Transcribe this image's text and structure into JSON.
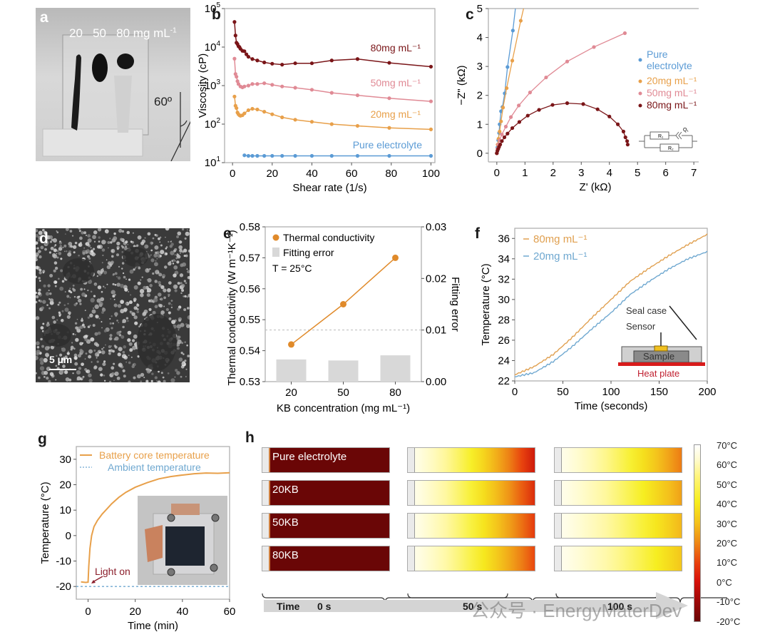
{
  "panels": {
    "a": {
      "label": "a",
      "concentrations": "20   50   80 mg mL",
      "unit_sup": "-1",
      "angle": "60º"
    },
    "d": {
      "label": "d",
      "scalebar": "5 µm"
    }
  },
  "chart_data": [
    {
      "id": "b",
      "label": "b",
      "type": "line",
      "title": "",
      "xlabel": "Shear rate (1/s)",
      "ylabel": "Viscosity (cP)",
      "xlim": [
        -4,
        102
      ],
      "ylim_log10": [
        1,
        5
      ],
      "yscale": "log",
      "xticks": [
        0,
        20,
        40,
        60,
        80,
        100
      ],
      "yticks": [
        "10^1",
        "10^2",
        "10^3",
        "10^4",
        "10^5"
      ],
      "series": [
        {
          "name": "80mg mL⁻¹",
          "color": "#7a1518",
          "x": [
            1,
            1.5,
            2,
            2.5,
            3,
            3.5,
            4,
            5,
            6,
            7,
            8,
            10,
            12.5,
            16,
            20,
            25,
            31.6,
            40,
            50,
            63,
            79,
            100
          ],
          "y": [
            45000,
            20000,
            13000,
            12000,
            10500,
            10000,
            9000,
            8000,
            7800,
            6500,
            5600,
            4900,
            4500,
            4000,
            3700,
            3500,
            3800,
            3800,
            4500,
            4900,
            3900,
            3100
          ]
        },
        {
          "name": "50mg mL⁻¹",
          "color": "#e08a95",
          "x": [
            1,
            1.5,
            2,
            2.5,
            3,
            4,
            5,
            6,
            8,
            10,
            12.5,
            16,
            20,
            25,
            31.6,
            40,
            50,
            63,
            79,
            100
          ],
          "y": [
            5000,
            2000,
            1700,
            1300,
            1100,
            950,
            900,
            950,
            1000,
            1100,
            1100,
            1150,
            1050,
            950,
            880,
            780,
            650,
            560,
            470,
            390
          ]
        },
        {
          "name": "20mg mL⁻¹",
          "color": "#e8a04a",
          "x": [
            1,
            1.5,
            2,
            2.5,
            3,
            3.5,
            4,
            5,
            6,
            8,
            10,
            12.5,
            16,
            20,
            25,
            31.6,
            40,
            50,
            63,
            79,
            100
          ],
          "y": [
            520,
            300,
            260,
            200,
            180,
            170,
            165,
            170,
            190,
            230,
            250,
            240,
            210,
            180,
            150,
            130,
            115,
            100,
            90,
            80,
            73
          ]
        },
        {
          "name": "Pure electrolyte",
          "color": "#5b9bd5",
          "x": [
            6,
            8,
            10,
            12.5,
            16,
            20,
            25,
            31.6,
            40,
            50,
            63,
            79,
            100
          ],
          "y": [
            15.5,
            15,
            15,
            15,
            15,
            15,
            15,
            15,
            15,
            15,
            15,
            15,
            15
          ]
        }
      ],
      "annotations": [
        "80mg mL⁻¹",
        "50mg mL⁻¹",
        "20mg mL⁻¹",
        "Pure electrolyte"
      ]
    },
    {
      "id": "c",
      "label": "c",
      "type": "scatter",
      "title": "",
      "xlabel": "Z' (kΩ)",
      "ylabel": "−Z\" (kΩ)",
      "xlim": [
        -0.3,
        7.3
      ],
      "ylim": [
        -0.3,
        5
      ],
      "xticks": [
        0,
        1,
        2,
        3,
        4,
        5,
        6,
        7
      ],
      "yticks": [
        0,
        1,
        2,
        3,
        4,
        5
      ],
      "legend": "right",
      "series": [
        {
          "name": "Pure electrolyte",
          "color": "#5b9bd5",
          "x": [
            0,
            0.02,
            0.05,
            0.08,
            0.1,
            0.15,
            0.2,
            0.28,
            0.38,
            0.57,
            0.66
          ],
          "y": [
            0,
            0.2,
            0.45,
            0.7,
            1.0,
            1.45,
            1.6,
            2.07,
            2.98,
            4.24,
            5.0
          ]
        },
        {
          "name": "20mg mL⁻¹",
          "color": "#e8a04a",
          "x": [
            0,
            0.03,
            0.06,
            0.1,
            0.15,
            0.22,
            0.35,
            0.55,
            0.85,
            0.95
          ],
          "y": [
            0,
            0.3,
            0.5,
            0.75,
            1.1,
            1.58,
            2.25,
            3.2,
            4.58,
            5.0
          ]
        },
        {
          "name": "50mg mL⁻¹",
          "color": "#e08a95",
          "x": [
            0,
            0.02,
            0.05,
            0.1,
            0.18,
            0.32,
            0.5,
            0.78,
            1.18,
            1.75,
            2.5,
            3.45,
            4.55
          ],
          "y": [
            0,
            0.15,
            0.3,
            0.45,
            0.65,
            0.92,
            1.25,
            1.65,
            2.1,
            2.62,
            3.17,
            3.67,
            4.15
          ]
        },
        {
          "name": "80mg mL⁻¹",
          "color": "#7a1518",
          "x": [
            0,
            0.02,
            0.05,
            0.08,
            0.12,
            0.18,
            0.27,
            0.38,
            0.55,
            0.8,
            1.1,
            1.5,
            1.98,
            2.5,
            3.07,
            3.58,
            4.0,
            4.3,
            4.5,
            4.57,
            4.63,
            4.65
          ],
          "y": [
            0,
            0.08,
            0.15,
            0.22,
            0.3,
            0.42,
            0.55,
            0.68,
            0.87,
            1.08,
            1.3,
            1.5,
            1.67,
            1.73,
            1.7,
            1.52,
            1.27,
            1.0,
            0.75,
            0.55,
            0.42,
            0.3
          ]
        }
      ],
      "inset": {
        "r1": "R₁",
        "q": "Q₁",
        "r2": "R₂"
      }
    },
    {
      "id": "e",
      "label": "e",
      "type": "bar",
      "title": "",
      "xlabel": "KB concentration (mg mL⁻¹)",
      "ylabel": "Thermal conductivity (W m⁻¹K⁻¹)",
      "y2label": "Fitting error",
      "categories": [
        "20",
        "50",
        "80"
      ],
      "ylim": [
        0.53,
        0.58
      ],
      "y2lim": [
        0,
        0.03
      ],
      "yticks": [
        "0.53",
        "0.54",
        "0.55",
        "0.56",
        "0.57",
        "0.58"
      ],
      "y2ticks": [
        "0.00",
        "0.01",
        "0.02",
        "0.03"
      ],
      "series": [
        {
          "name": "Thermal conductivity",
          "axis": "left",
          "kind": "line",
          "color": "#e08a2a",
          "values": [
            0.542,
            0.555,
            0.57
          ]
        },
        {
          "name": "Fitting error",
          "axis": "right",
          "kind": "bar",
          "color": "#d8d8d8",
          "values": [
            0.0043,
            0.0041,
            0.0051
          ]
        }
      ],
      "reference_line_right": 0.01,
      "annotation": "T = 25°C"
    },
    {
      "id": "f",
      "label": "f",
      "type": "line",
      "title": "",
      "xlabel": "Time (seconds)",
      "ylabel": "Temperature (°C)",
      "xlim": [
        0,
        200
      ],
      "ylim": [
        22,
        37
      ],
      "xticks": [
        0,
        50,
        100,
        150,
        200
      ],
      "yticks": [
        22,
        24,
        26,
        28,
        30,
        32,
        34,
        36
      ],
      "legend": "top-left",
      "series": [
        {
          "name": "80mg mL⁻¹",
          "color": "#e0a050",
          "x": [
            0,
            20,
            40,
            60,
            80,
            100,
            120,
            140,
            160,
            180,
            200
          ],
          "y": [
            22.6,
            23.4,
            24.6,
            26.3,
            28.2,
            30.0,
            31.8,
            33.1,
            34.3,
            35.4,
            36.4
          ]
        },
        {
          "name": "20mg mL⁻¹",
          "color": "#6fa8d0",
          "x": [
            0,
            20,
            40,
            60,
            80,
            100,
            120,
            140,
            160,
            180,
            200
          ],
          "y": [
            22.4,
            22.8,
            23.9,
            25.4,
            27.1,
            28.7,
            30.5,
            31.8,
            33.0,
            34.0,
            34.7
          ]
        }
      ],
      "inset": {
        "seal": "Seal case",
        "sensor": "Sensor",
        "sample": "Sample",
        "plate": "Heat plate"
      }
    },
    {
      "id": "g",
      "label": "g",
      "type": "line",
      "title": "",
      "xlabel": "Time (min)",
      "ylabel": "Temperature (°C)",
      "xlim": [
        -5,
        60
      ],
      "ylim": [
        -25,
        35
      ],
      "xticks": [
        0,
        20,
        40,
        60
      ],
      "yticks": [
        -20,
        -10,
        0,
        10,
        20,
        30
      ],
      "legend": "top",
      "series": [
        {
          "name": "Battery core temperature",
          "color": "#e8a04a",
          "x": [
            -3,
            -1,
            0,
            0.3,
            0.8,
            1.5,
            2.5,
            4,
            6,
            8,
            10,
            13,
            16,
            20,
            25,
            30,
            35,
            40,
            45,
            50,
            55,
            60
          ],
          "y": [
            -18.2,
            -18.4,
            -18.3,
            -12,
            -5,
            0,
            3.5,
            6,
            8.5,
            10.5,
            12.5,
            15,
            17,
            19,
            20.8,
            22.3,
            23.2,
            23.8,
            24.3,
            24.6,
            24.5,
            24.7
          ]
        },
        {
          "name": "Ambient temperature",
          "color": "#6fa8d0",
          "style": "dashed",
          "x": [
            -5,
            60
          ],
          "y": [
            -20,
            -20
          ]
        }
      ],
      "annotation": "Light on"
    },
    {
      "id": "h",
      "label": "h",
      "type": "heatmap",
      "rows": [
        "Pure electrolyte",
        "20KB",
        "50KB",
        "80KB"
      ],
      "times": [
        "0 s",
        "50 s",
        "100 s"
      ],
      "time_label": "Time",
      "colorbar": {
        "ticks": [
          "70°C",
          "60°C",
          "50°C",
          "40°C",
          "30°C",
          "20°C",
          "10°C",
          "0°C",
          "-10°C",
          "-20°C"
        ],
        "range": [
          -20,
          70
        ]
      },
      "end_temperature_c": {
        "0 s": [
          -20,
          -20,
          -20,
          -20
        ],
        "50 s": [
          2,
          6,
          9,
          11
        ],
        "100 s": [
          18,
          24,
          28,
          31
        ]
      }
    }
  ],
  "watermark": "公众号 · EnergyMaterDev"
}
